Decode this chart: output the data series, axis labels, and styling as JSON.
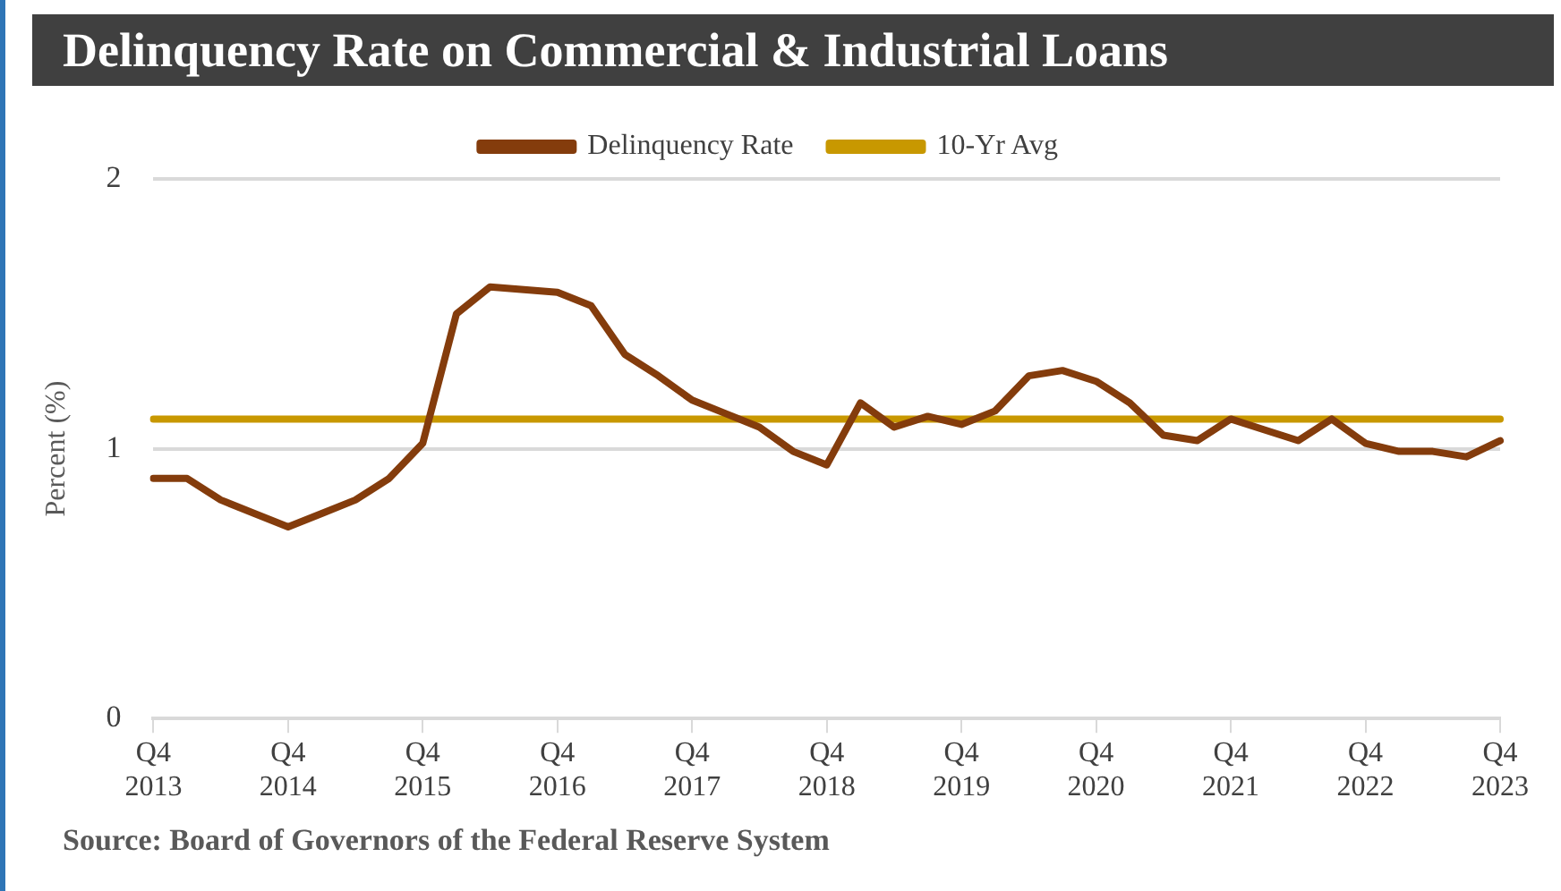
{
  "chart_data": {
    "type": "line",
    "title": "Delinquency Rate on Commercial & Industrial Loans",
    "ylabel": "Percent (%)",
    "categories": [
      "Q4 2013",
      null,
      null,
      null,
      "Q4 2014",
      null,
      null,
      null,
      "Q4 2015",
      null,
      null,
      null,
      "Q4 2016",
      null,
      null,
      null,
      "Q4 2017",
      null,
      null,
      null,
      "Q4 2018",
      null,
      null,
      null,
      "Q4 2019",
      null,
      null,
      null,
      "Q4 2020",
      null,
      null,
      null,
      "Q4 2021",
      null,
      null,
      null,
      "Q4 2022",
      null,
      null,
      null,
      "Q4 2023"
    ],
    "series": [
      {
        "name": "Delinquency Rate",
        "color": "#843c0c",
        "values": [
          0.89,
          0.89,
          0.81,
          0.76,
          0.71,
          0.76,
          0.81,
          0.89,
          1.02,
          1.5,
          1.6,
          1.59,
          1.58,
          1.53,
          1.35,
          1.27,
          1.18,
          1.13,
          1.08,
          0.99,
          0.94,
          1.17,
          1.08,
          1.12,
          1.09,
          1.14,
          1.27,
          1.29,
          1.25,
          1.17,
          1.05,
          1.03,
          1.11,
          1.07,
          1.03,
          1.11,
          1.02,
          0.99,
          0.99,
          0.97,
          1.03
        ]
      },
      {
        "name": "10-Yr Avg",
        "color": "#c89800",
        "values": [
          1.11,
          1.11,
          1.11,
          1.11,
          1.11,
          1.11,
          1.11,
          1.11,
          1.11,
          1.11,
          1.11,
          1.11,
          1.11,
          1.11,
          1.11,
          1.11,
          1.11,
          1.11,
          1.11,
          1.11,
          1.11,
          1.11,
          1.11,
          1.11,
          1.11,
          1.11,
          1.11,
          1.11,
          1.11,
          1.11,
          1.11,
          1.11,
          1.11,
          1.11,
          1.11,
          1.11,
          1.11,
          1.11,
          1.11,
          1.11,
          1.11
        ]
      }
    ],
    "ylim": [
      0,
      2
    ],
    "yticks": [
      0,
      1,
      2
    ],
    "grid": "y",
    "legend": "top",
    "marker": "none",
    "line_style": "solid",
    "annotations": [
      "Source:  Board of Governors of the Federal Reserve System"
    ]
  }
}
